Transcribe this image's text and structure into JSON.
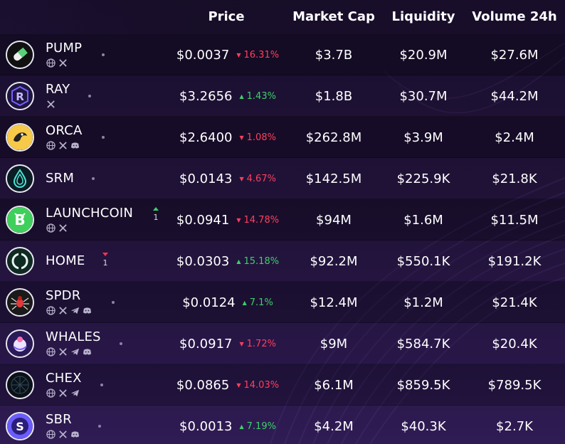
{
  "colors": {
    "positive": "#3dd06a",
    "negative": "#ff3f5d",
    "text": "#ffffff",
    "background": "#221339"
  },
  "headers": {
    "price": "Price",
    "market_cap": "Market Cap",
    "liquidity": "Liquidity",
    "volume": "Volume 24h"
  },
  "rows": [
    {
      "name": "PUMP",
      "socials": [
        "globe-icon",
        "x-icon"
      ],
      "price": "$0.0037",
      "change": "16.31%",
      "direction": "down",
      "market_cap": "$3.7B",
      "liquidity": "$20.9M",
      "volume": "$27.6M"
    },
    {
      "name": "RAY",
      "socials": [
        "x-icon"
      ],
      "price": "$3.2656",
      "change": "1.43%",
      "direction": "up",
      "market_cap": "$1.8B",
      "liquidity": "$30.7M",
      "volume": "$44.2M"
    },
    {
      "name": "ORCA",
      "socials": [
        "globe-icon",
        "x-icon",
        "discord-icon"
      ],
      "price": "$2.6400",
      "change": "1.08%",
      "direction": "down",
      "market_cap": "$262.8M",
      "liquidity": "$3.9M",
      "volume": "$2.4M"
    },
    {
      "name": "SRM",
      "socials": [],
      "price": "$0.0143",
      "change": "4.67%",
      "direction": "down",
      "market_cap": "$142.5M",
      "liquidity": "$225.9K",
      "volume": "$21.8K"
    },
    {
      "name": "LAUNCHCOIN",
      "socials": [
        "globe-icon",
        "x-icon"
      ],
      "rank_change": "1",
      "rank_direction": "up",
      "price": "$0.0941",
      "change": "14.78%",
      "direction": "down",
      "market_cap": "$94M",
      "liquidity": "$1.6M",
      "volume": "$11.5M"
    },
    {
      "name": "HOME",
      "socials": [],
      "rank_change": "1",
      "rank_direction": "down",
      "price": "$0.0303",
      "change": "15.18%",
      "direction": "up",
      "market_cap": "$92.2M",
      "liquidity": "$550.1K",
      "volume": "$191.2K"
    },
    {
      "name": "SPDR",
      "socials": [
        "globe-icon",
        "x-icon",
        "telegram-icon",
        "discord-icon"
      ],
      "price": "$0.0124",
      "change": "7.1%",
      "direction": "up",
      "market_cap": "$12.4M",
      "liquidity": "$1.2M",
      "volume": "$21.4K"
    },
    {
      "name": "WHALES",
      "socials": [
        "globe-icon",
        "x-icon",
        "telegram-icon",
        "discord-icon"
      ],
      "price": "$0.0917",
      "change": "1.72%",
      "direction": "down",
      "market_cap": "$9M",
      "liquidity": "$584.7K",
      "volume": "$20.4K"
    },
    {
      "name": "CHEX",
      "socials": [
        "globe-icon",
        "x-icon",
        "telegram-icon"
      ],
      "price": "$0.0865",
      "change": "14.03%",
      "direction": "down",
      "market_cap": "$6.1M",
      "liquidity": "$859.5K",
      "volume": "$789.5K"
    },
    {
      "name": "SBR",
      "socials": [
        "globe-icon",
        "x-icon",
        "discord-icon"
      ],
      "price": "$0.0013",
      "change": "7.19%",
      "direction": "up",
      "market_cap": "$4.2M",
      "liquidity": "$40.3K",
      "volume": "$2.7K"
    }
  ]
}
